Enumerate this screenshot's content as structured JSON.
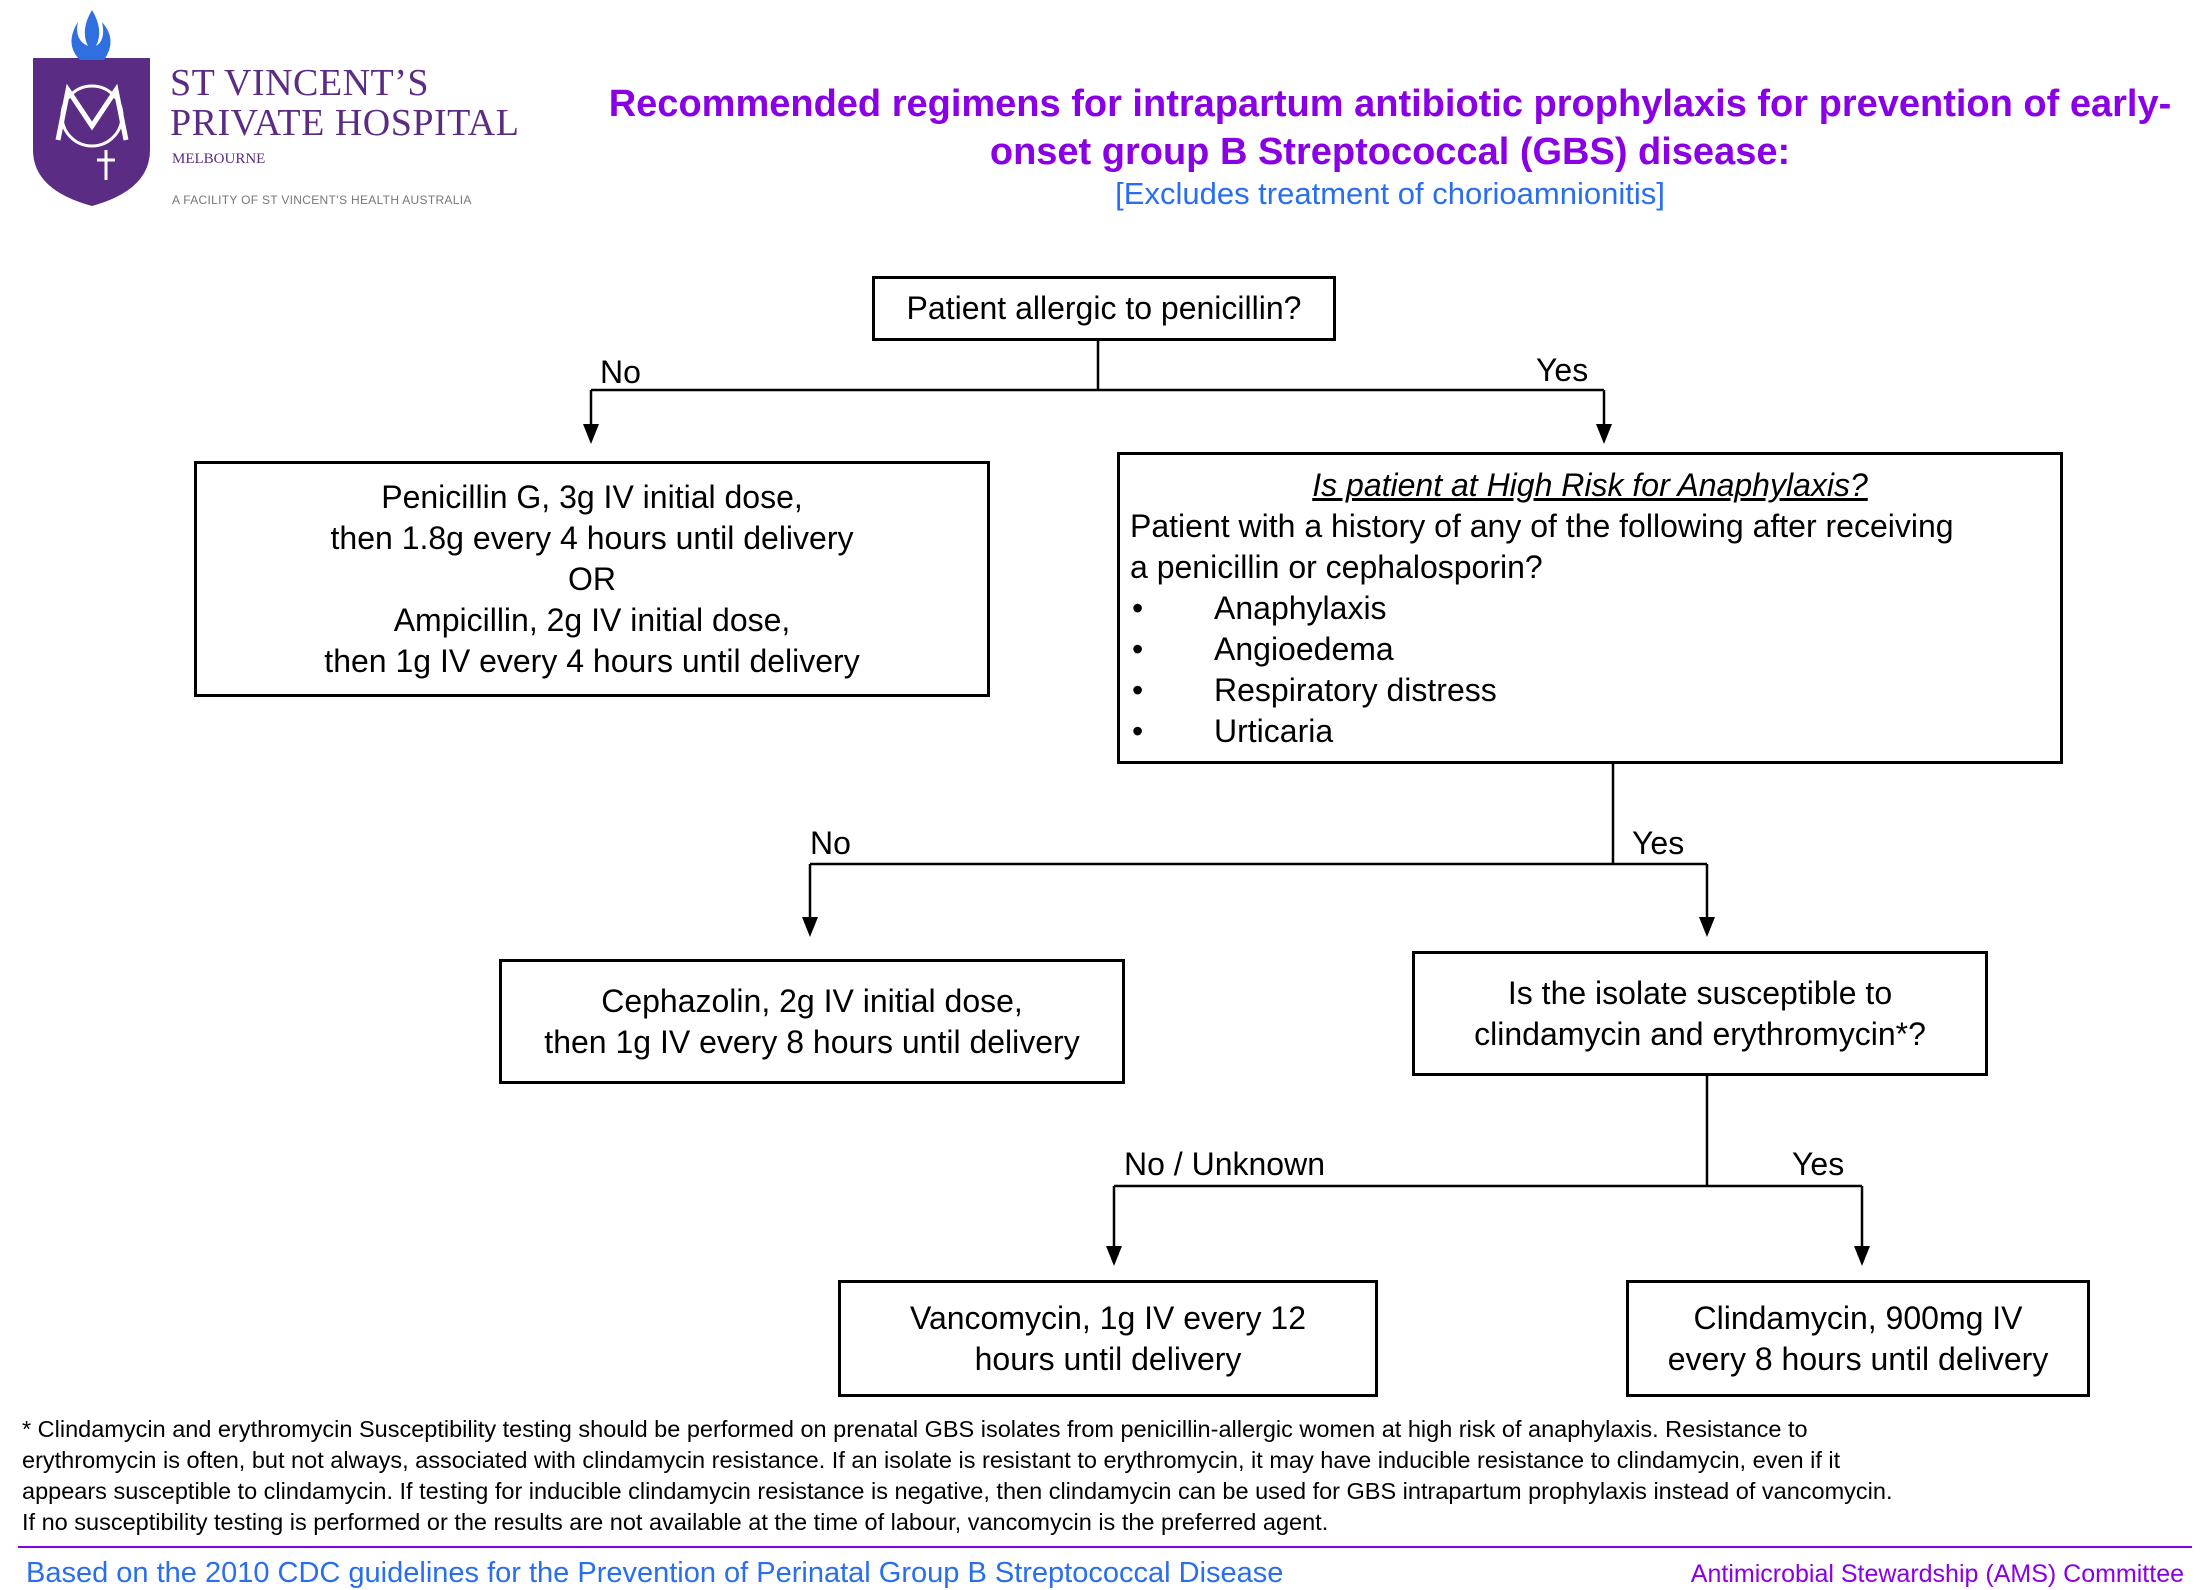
{
  "logo": {
    "line1": "ST VINCENT’S",
    "line2": "PRIVATE HOSPITAL",
    "line3": "MELBOURNE",
    "line4": "A FACILITY OF ST VINCENT’S HEALTH AUSTRALIA",
    "shield_color": "#5b2c83",
    "flame_color": "#2f6fdf"
  },
  "title": "Recommended regimens for intrapartum antibiotic prophylaxis for prevention of early-onset group B Streptococcal (GBS) disease:",
  "subtitle": "[Excludes treatment of chorioamnionitis]",
  "flow": {
    "q1": "Patient allergic to penicillin?",
    "q1_no": "No",
    "q1_yes": "Yes",
    "penicillin_regimen": [
      "Penicillin G, 3g IV initial dose,",
      "then 1.8g every 4 hours until delivery",
      "OR",
      "Ampicillin, 2g IV initial dose,",
      "then 1g IV every 4 hours until delivery"
    ],
    "q2_heading": "Is patient at High Risk for Anaphylaxis?",
    "q2_line1": "Patient with a history of any of the following after receiving",
    "q2_line2": "a penicillin or cephalosporin?",
    "q2_bullets": [
      "Anaphylaxis",
      "Angioedema",
      "Respiratory distress",
      "Urticaria"
    ],
    "q2_no": "No",
    "q2_yes": "Yes",
    "cephazolin_regimen": [
      "Cephazolin, 2g IV initial dose,",
      "then 1g IV every 8 hours until delivery"
    ],
    "q3": [
      "Is the isolate susceptible to",
      "clindamycin and erythromycin*?"
    ],
    "q3_no": "No / Unknown",
    "q3_yes": "Yes",
    "vancomycin_regimen": [
      "Vancomycin, 1g IV every 12",
      "hours until delivery"
    ],
    "clindamycin_regimen": [
      "Clindamycin, 900mg IV",
      "every 8 hours until delivery"
    ]
  },
  "footnote": [
    "* Clindamycin and erythromycin Susceptibility testing should be performed on prenatal GBS isolates from penicillin-allergic women at high risk of anaphylaxis. Resistance to",
    "erythromycin is often, but not always, associated with clindamycin resistance. If an isolate is resistant to erythromycin, it may have inducible resistance to clindamycin, even if it",
    "appears susceptible to clindamycin. If testing for inducible clindamycin resistance is negative, then clindamycin can be used for GBS intrapartum prophylaxis instead of vancomycin.",
    "If no susceptibility testing is performed or the results are not available at the time of labour, vancomycin is the preferred agent."
  ],
  "footer_left": "Based on the 2010 CDC guidelines for the Prevention of Perinatal Group B Streptococcal Disease",
  "footer_right": "Antimicrobial Stewardship (AMS) Committee"
}
